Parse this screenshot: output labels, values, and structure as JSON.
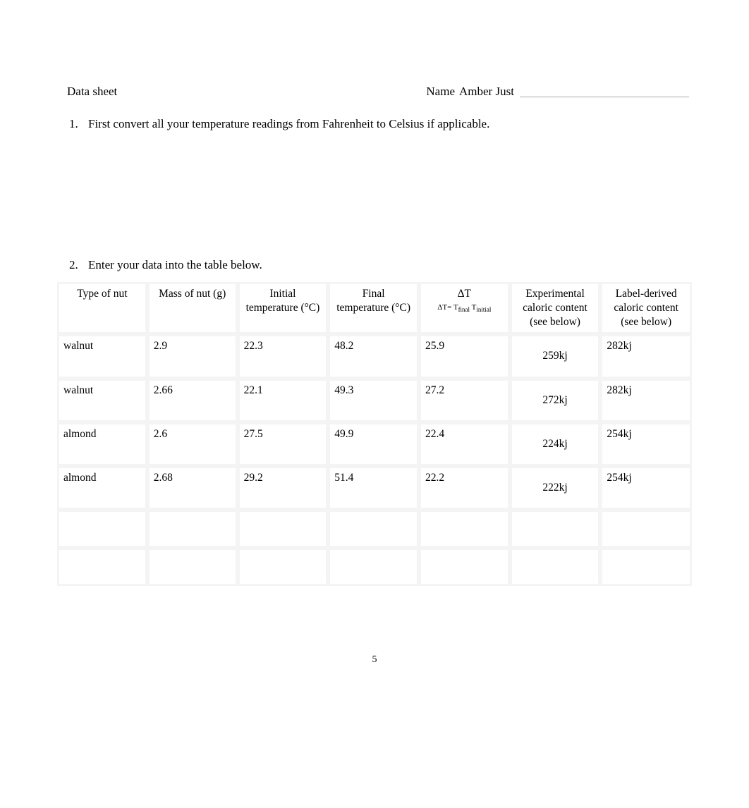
{
  "header": {
    "title": "Data sheet",
    "name_label": "Name",
    "name_value": "Amber Just"
  },
  "instructions": {
    "item1": "First convert all your temperature readings from Fahrenheit to Celsius if applicable.",
    "item2": "Enter your data into the table below."
  },
  "table": {
    "headers": {
      "type": "Type of nut",
      "mass": "Mass of nut (g)",
      "init_line1": "Initial",
      "init_line2": "temperature (°C)",
      "final_line1": "Final",
      "final_line2": "temperature (°C)",
      "dt_main": "ΔT",
      "dt_formula_prefix": "ΔT= T",
      "dt_formula_sub1": "final",
      "dt_formula_mid": "   T",
      "dt_formula_sub2": "initial",
      "exp_line1": "Experimental",
      "exp_line2": "caloric content",
      "exp_line3": "(see below)",
      "label_line1": "Label-derived",
      "label_line2": "caloric content",
      "label_line3": "(see below)"
    },
    "rows": [
      {
        "type": "walnut",
        "mass": "2.9",
        "init": "22.3",
        "final": "48.2",
        "dt": "25.9",
        "exp": "259kj",
        "label": "282kj"
      },
      {
        "type": "walnut",
        "mass": "2.66",
        "init": "22.1",
        "final": "49.3",
        "dt": "27.2",
        "exp": "272kj",
        "label": "282kj"
      },
      {
        "type": "almond",
        "mass": "2.6",
        "init": "27.5",
        "final": "49.9",
        "dt": "22.4",
        "exp": "224kj",
        "label": "254kj"
      },
      {
        "type": "almond",
        "mass": "2.68",
        "init": "29.2",
        "final": "51.4",
        "dt": "22.2",
        "exp": "222kj",
        "label": "254kj"
      }
    ]
  },
  "page_number": "5"
}
